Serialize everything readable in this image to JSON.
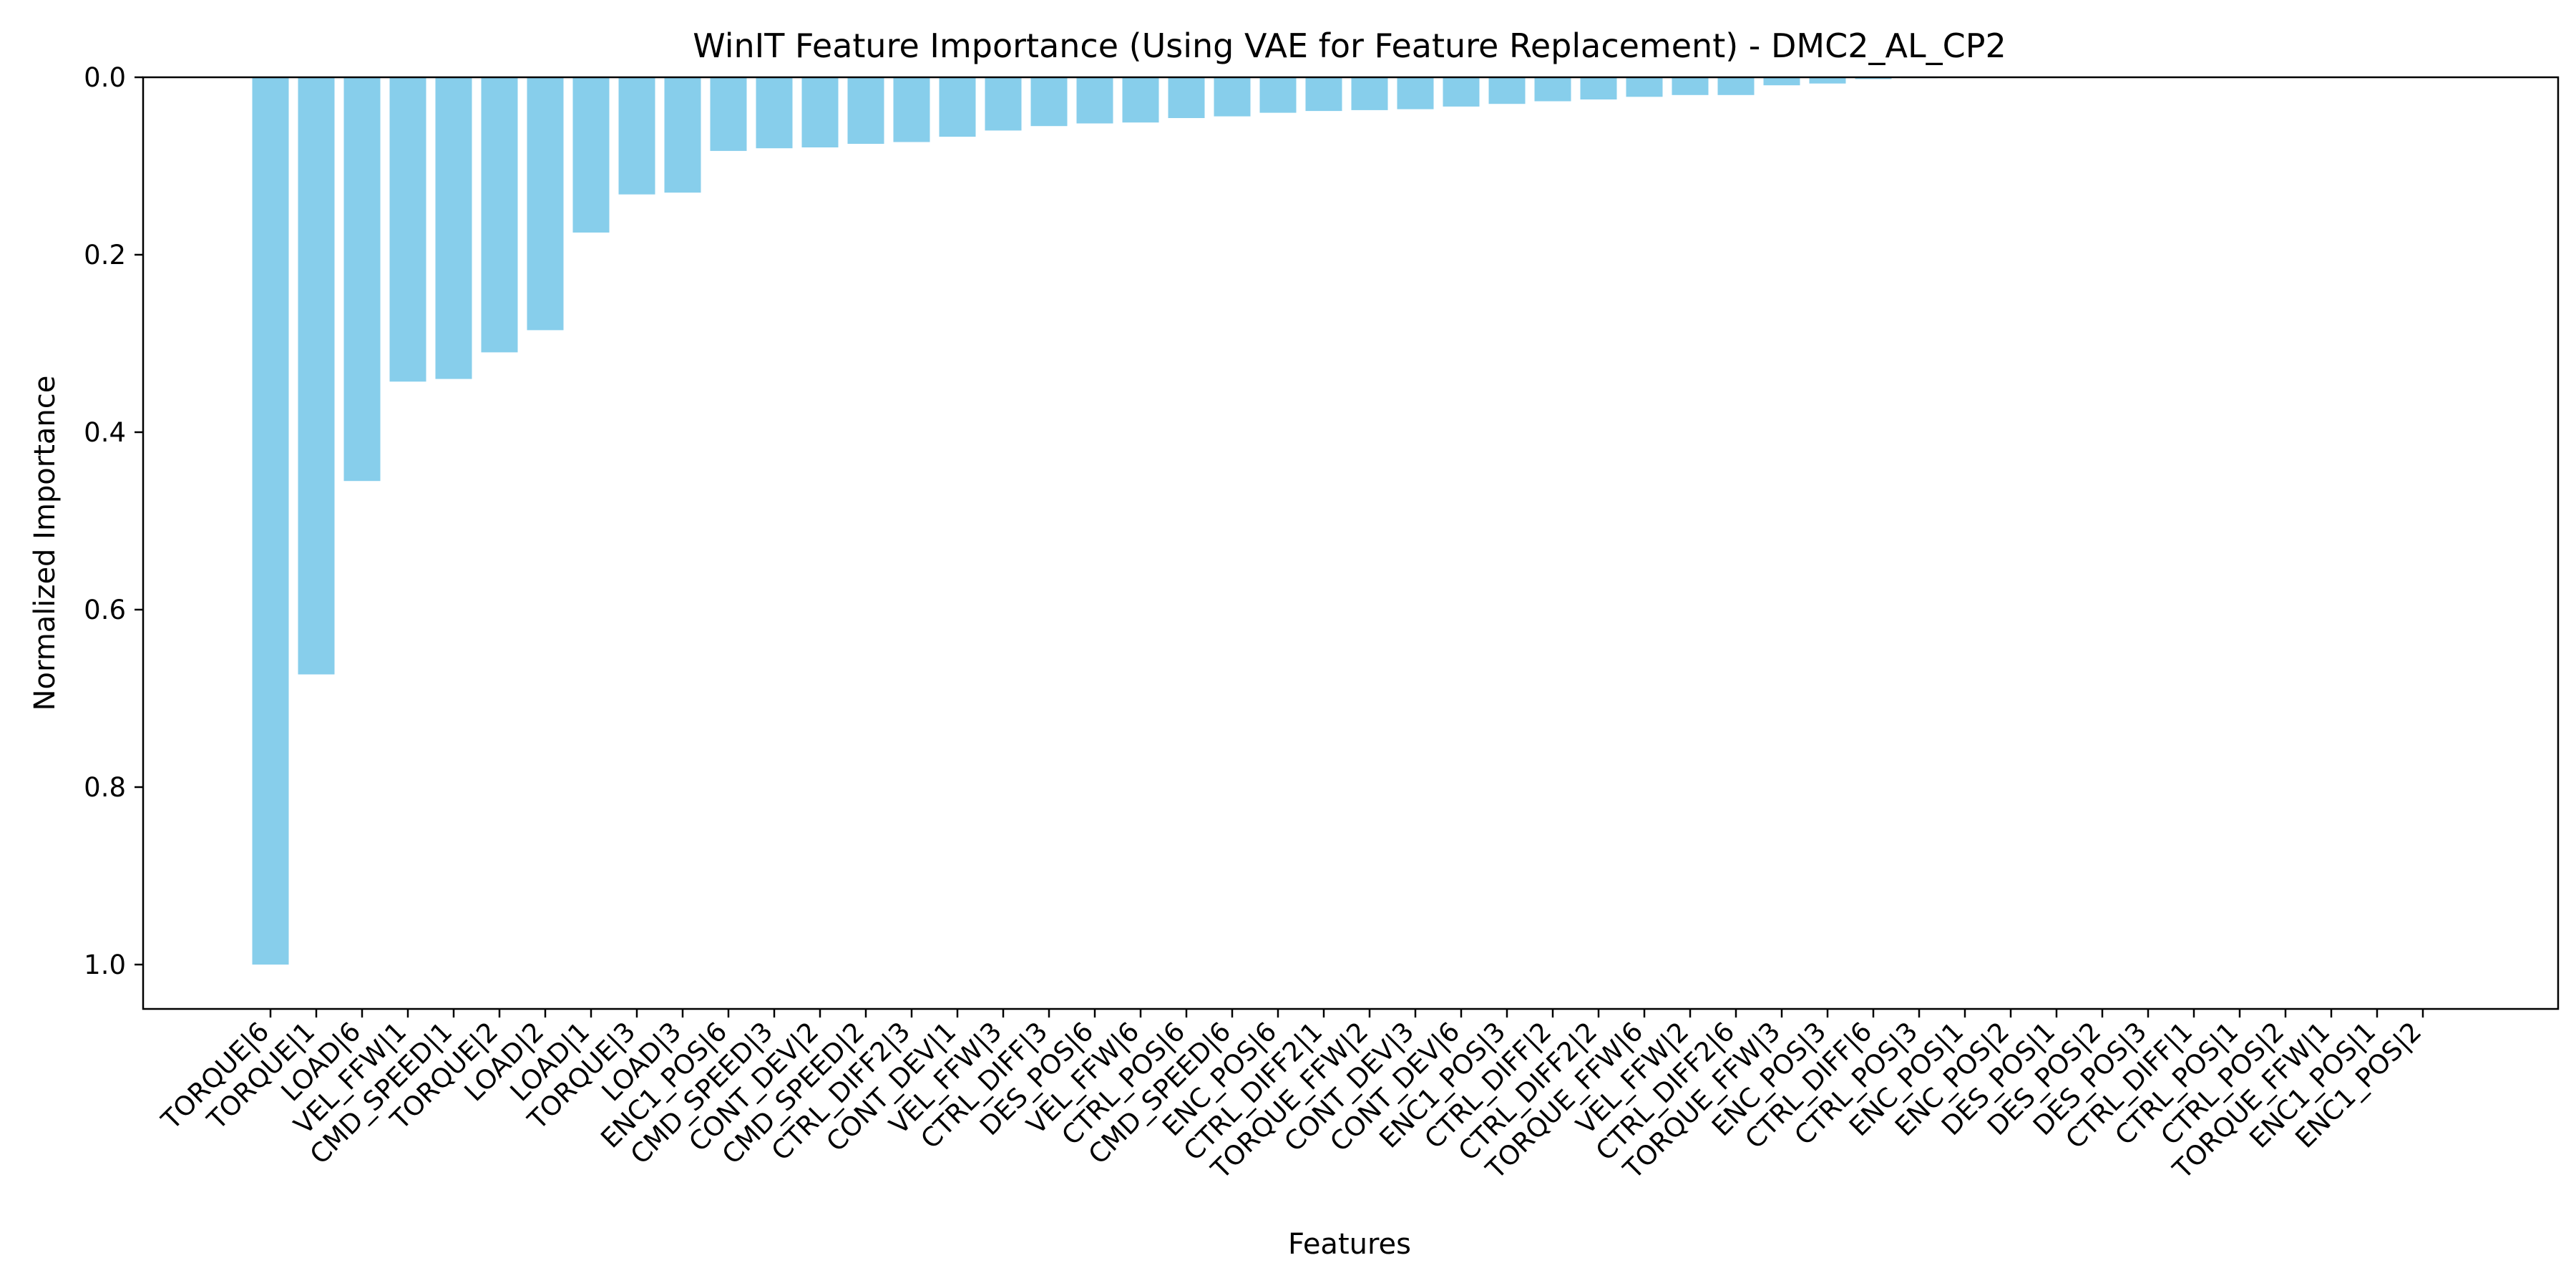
{
  "chart_data": {
    "type": "bar",
    "title": "WinIT Feature Importance (Using VAE for Feature Replacement) - DMC2_AL_CP2",
    "xlabel": "Features",
    "ylabel": "Normalized Importance",
    "ylim": [
      0,
      1.05
    ],
    "y_inverted": true,
    "y_ticks": [
      0.0,
      0.2,
      0.4,
      0.6,
      0.8,
      1.0
    ],
    "y_tick_labels": [
      "0.0",
      "0.2",
      "0.4",
      "0.6",
      "0.8",
      "1.0"
    ],
    "bar_color": "#87ceeb",
    "grid": false,
    "legend": "none",
    "categories": [
      "TORQUE|6",
      "TORQUE|1",
      "LOAD|6",
      "VEL_FFW|1",
      "CMD_SPEED|1",
      "TORQUE|2",
      "LOAD|2",
      "LOAD|1",
      "TORQUE|3",
      "LOAD|3",
      "ENC1_POS|6",
      "CMD_SPEED|3",
      "CONT_DEV|2",
      "CMD_SPEED|2",
      "CTRL_DIFF2|3",
      "CONT_DEV|1",
      "VEL_FFW|3",
      "CTRL_DIFF|3",
      "DES_POS|6",
      "VEL_FFW|6",
      "CTRL_POS|6",
      "CMD_SPEED|6",
      "ENC_POS|6",
      "CTRL_DIFF2|1",
      "TORQUE_FFW|2",
      "CONT_DEV|3",
      "CONT_DEV|6",
      "ENC1_POS|3",
      "CTRL_DIFF|2",
      "CTRL_DIFF2|2",
      "TORQUE_FFW|6",
      "VEL_FFW|2",
      "CTRL_DIFF2|6",
      "TORQUE_FFW|3",
      "ENC_POS|3",
      "CTRL_DIFF|6",
      "CTRL_POS|3",
      "ENC_POS|1",
      "ENC_POS|2",
      "DES_POS|1",
      "DES_POS|2",
      "DES_POS|3",
      "CTRL_DIFF|1",
      "CTRL_POS|1",
      "CTRL_POS|2",
      "TORQUE_FFW|1",
      "ENC1_POS|1",
      "ENC1_POS|2"
    ],
    "values": [
      1.0,
      0.673,
      0.455,
      0.343,
      0.34,
      0.31,
      0.285,
      0.175,
      0.132,
      0.13,
      0.083,
      0.08,
      0.079,
      0.075,
      0.073,
      0.067,
      0.06,
      0.055,
      0.052,
      0.051,
      0.046,
      0.044,
      0.04,
      0.038,
      0.037,
      0.036,
      0.033,
      0.03,
      0.027,
      0.025,
      0.022,
      0.02,
      0.02,
      0.009,
      0.007,
      0.002,
      0.001,
      0.0,
      0.0,
      0.0,
      0.0,
      0.0,
      0.0,
      0.0,
      0.0,
      0.0,
      0.0,
      0.0
    ]
  }
}
